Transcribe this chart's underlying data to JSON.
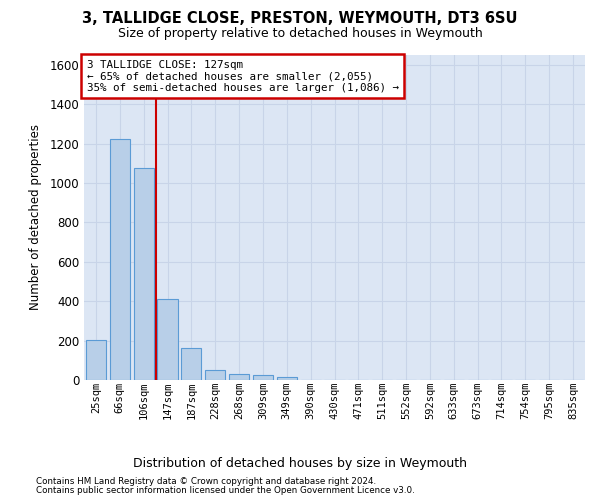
{
  "title": "3, TALLIDGE CLOSE, PRESTON, WEYMOUTH, DT3 6SU",
  "subtitle": "Size of property relative to detached houses in Weymouth",
  "xlabel": "Distribution of detached houses by size in Weymouth",
  "ylabel": "Number of detached properties",
  "categories": [
    "25sqm",
    "66sqm",
    "106sqm",
    "147sqm",
    "187sqm",
    "228sqm",
    "268sqm",
    "309sqm",
    "349sqm",
    "390sqm",
    "430sqm",
    "471sqm",
    "511sqm",
    "552sqm",
    "592sqm",
    "633sqm",
    "673sqm",
    "714sqm",
    "754sqm",
    "795sqm",
    "835sqm"
  ],
  "values": [
    205,
    1225,
    1075,
    410,
    165,
    50,
    30,
    25,
    15,
    0,
    0,
    0,
    0,
    0,
    0,
    0,
    0,
    0,
    0,
    0,
    0
  ],
  "bar_color": "#b8cfe8",
  "bar_edge_color": "#5b9bd5",
  "grid_color": "#c8d4e8",
  "background_color": "#dce6f4",
  "vline_x": 2.5,
  "vline_color": "#cc0000",
  "annotation_line1": "3 TALLIDGE CLOSE: 127sqm",
  "annotation_line2": "← 65% of detached houses are smaller (2,055)",
  "annotation_line3": "35% of semi-detached houses are larger (1,086) →",
  "annotation_box_edgecolor": "#cc0000",
  "ylim": [
    0,
    1650
  ],
  "yticks": [
    0,
    200,
    400,
    600,
    800,
    1000,
    1200,
    1400,
    1600
  ],
  "footnote1": "Contains HM Land Registry data © Crown copyright and database right 2024.",
  "footnote2": "Contains public sector information licensed under the Open Government Licence v3.0."
}
